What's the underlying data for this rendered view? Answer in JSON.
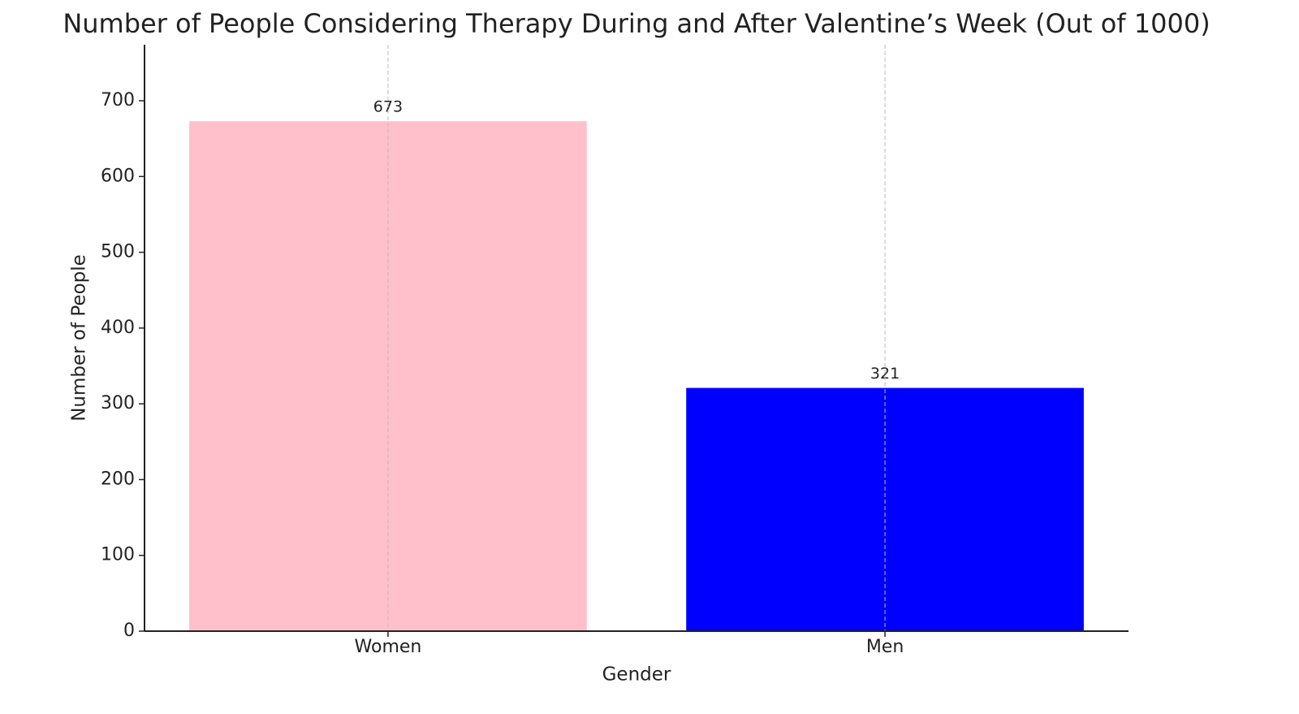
{
  "chart_data": {
    "type": "bar",
    "title": "Number of People Considering Therapy During and After Valentine’s Week (Out of 1000)",
    "x_label": "Gender",
    "y_label": "Number of People",
    "categories": [
      "Women",
      "Men"
    ],
    "values": [
      673,
      321
    ],
    "colors": [
      "#ffc0cb",
      "#0000ff"
    ],
    "ylim": [
      0,
      774
    ],
    "yticks": [
      0,
      100,
      200,
      300,
      400,
      500,
      600,
      700
    ],
    "grid": "x"
  }
}
